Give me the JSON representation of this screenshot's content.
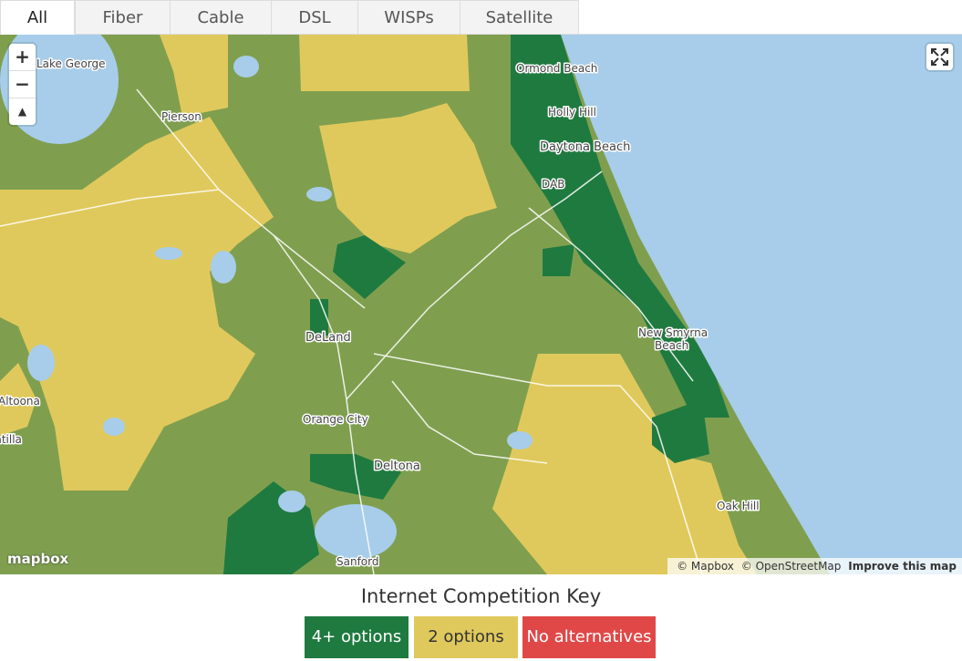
{
  "tabs": [
    "All",
    "Fiber",
    "Cable",
    "DSL",
    "WISPs",
    "Satellite"
  ],
  "map": {
    "controls": [
      "+",
      "−"
    ],
    "labels": [
      "Lake George",
      "Pierson",
      "Ormond Beach",
      "Holly Hill",
      "Daytona Beach",
      "DAB",
      "DeLand",
      "New Smyrna",
      "Beach",
      "Altoona",
      "Orange City",
      "Deltona",
      "Umatilla",
      "Oak Hill",
      "Sanford"
    ],
    "logo": "mapbox",
    "attribution": [
      "© Mapbox",
      "© OpenStreetMap",
      "Improve this map"
    ]
  },
  "legend": {
    "title": "Internet Competition Key",
    "items": [
      "4+ options",
      "2 options",
      "No alternatives"
    ]
  }
}
